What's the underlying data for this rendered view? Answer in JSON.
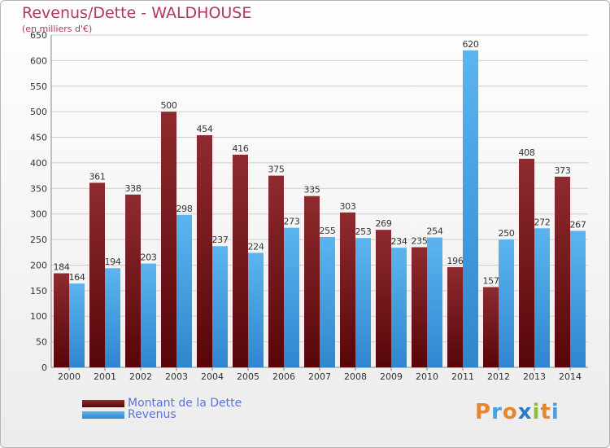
{
  "title": "Revenus/Dette - WALDHOUSE",
  "subtitle": "(en milliers d'€)",
  "logo_text": "Proxiti",
  "colors": {
    "dette": "#7b1c1f",
    "revenus": "#4da6e6",
    "title": "#b03a56",
    "legend_text": "#5b73d9"
  },
  "chart_data": {
    "type": "bar",
    "categories": [
      "2000",
      "2001",
      "2002",
      "2003",
      "2004",
      "2005",
      "2006",
      "2007",
      "2008",
      "2009",
      "2010",
      "2011",
      "2012",
      "2013",
      "2014"
    ],
    "series": [
      {
        "name": "Montant de la Dette",
        "values": [
          184,
          361,
          338,
          500,
          454,
          416,
          375,
          335,
          303,
          269,
          235,
          196,
          157,
          408,
          373
        ]
      },
      {
        "name": "Revenus",
        "values": [
          164,
          194,
          203,
          298,
          237,
          224,
          273,
          255,
          253,
          234,
          254,
          620,
          250,
          272,
          267
        ]
      }
    ],
    "ylim": [
      0,
      650
    ],
    "yticks": [
      0,
      50,
      100,
      150,
      200,
      250,
      300,
      350,
      400,
      450,
      500,
      550,
      600,
      650
    ],
    "grid": true,
    "legend": "bottom-left"
  }
}
